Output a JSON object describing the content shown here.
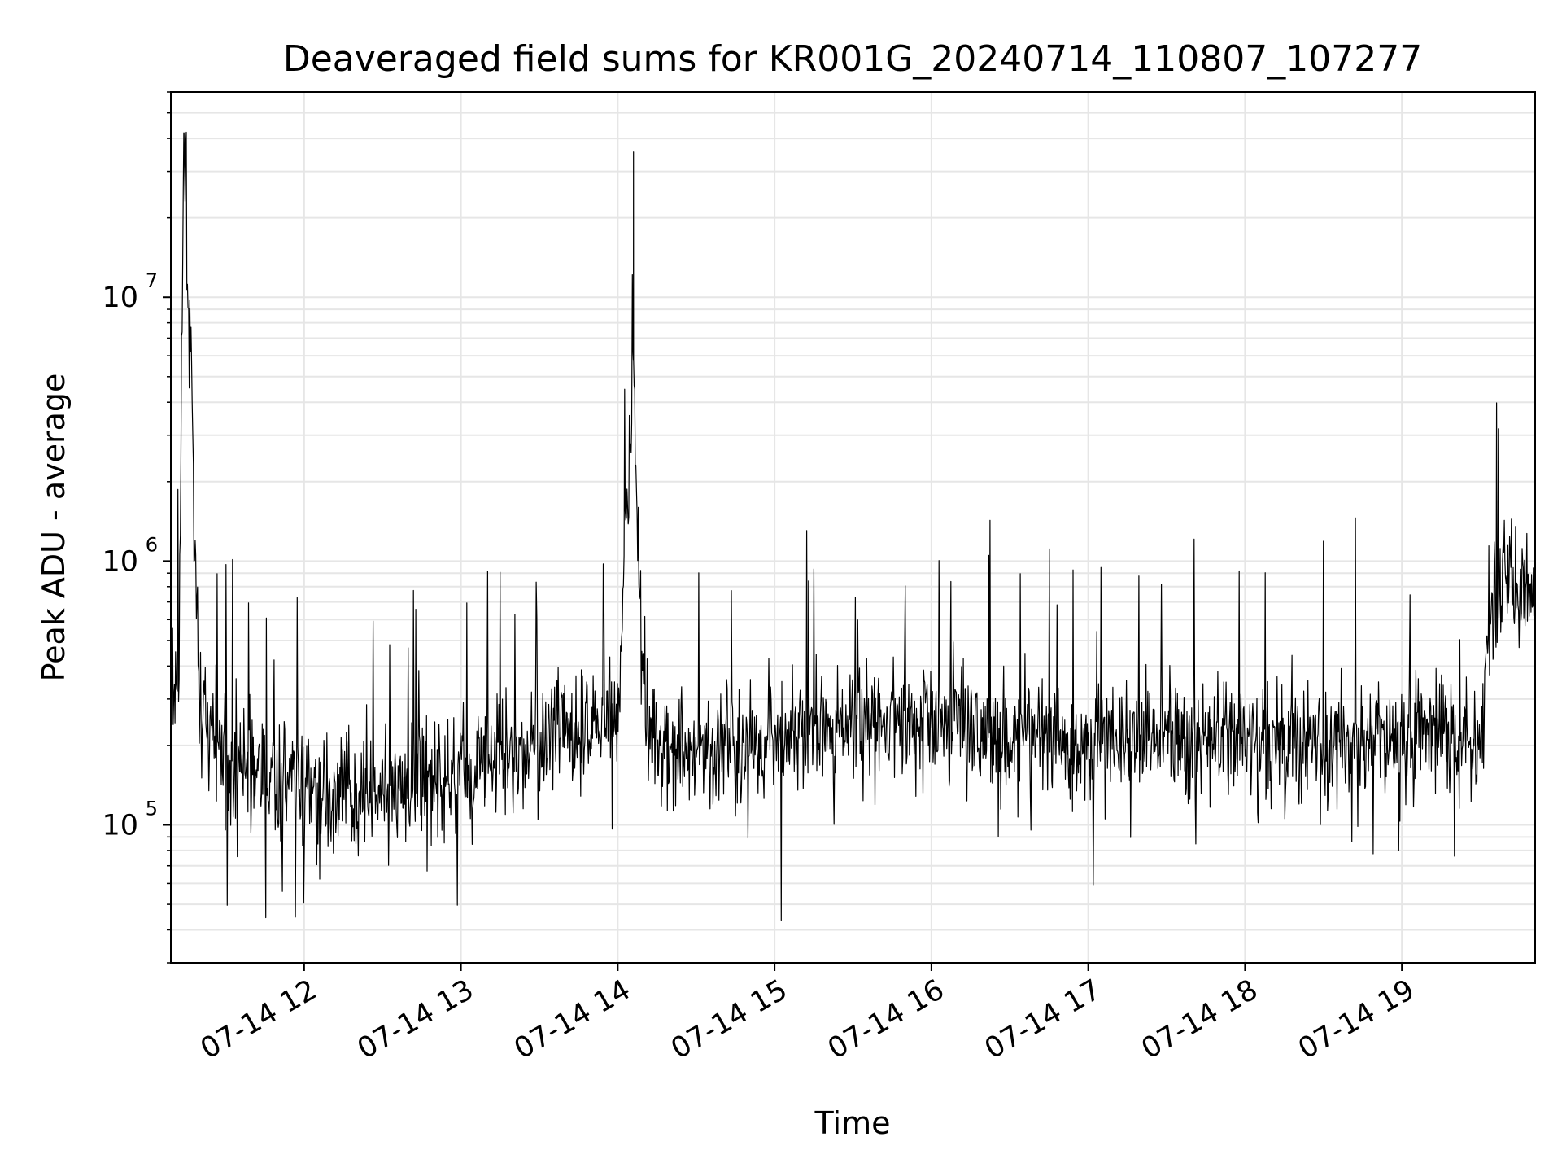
{
  "chart_data": {
    "type": "line",
    "title": "Deaveraged field sums for KR001G_20240714_110807_107277",
    "xlabel": "Time",
    "ylabel": "Peak ADU - average",
    "x_range": [
      "07-14 11:09",
      "07-14 19:51"
    ],
    "xticks": [
      {
        "time": "07-14 12:00",
        "label": "07-14 12"
      },
      {
        "time": "07-14 13:00",
        "label": "07-14 13"
      },
      {
        "time": "07-14 14:00",
        "label": "07-14 14"
      },
      {
        "time": "07-14 15:00",
        "label": "07-14 15"
      },
      {
        "time": "07-14 16:00",
        "label": "07-14 16"
      },
      {
        "time": "07-14 17:00",
        "label": "07-14 17"
      },
      {
        "time": "07-14 18:00",
        "label": "07-14 18"
      },
      {
        "time": "07-14 19:00",
        "label": "07-14 19"
      }
    ],
    "y_scale": "log",
    "ylim": [
      30000,
      60000000
    ],
    "yticks": [
      {
        "value": 100000,
        "base": "10",
        "exp": "5"
      },
      {
        "value": 1000000,
        "base": "10",
        "exp": "6"
      },
      {
        "value": 10000000,
        "base": "10",
        "exp": "7"
      }
    ],
    "grid": true,
    "line_color": "#000000",
    "grid_color": "#e6e6e6",
    "series": [
      {
        "x": [
          "07-14 11:09",
          "07-14 11:12",
          "07-14 11:14",
          "07-14 11:20",
          "07-14 11:30",
          "07-14 11:40",
          "07-14 11:50",
          "07-14 12:00",
          "07-14 12:10",
          "07-14 12:20",
          "07-14 12:30",
          "07-14 12:40",
          "07-14 12:50",
          "07-14 13:00",
          "07-14 13:10",
          "07-14 13:20",
          "07-14 13:30",
          "07-14 13:40",
          "07-14 13:50",
          "07-14 14:00",
          "07-14 14:06",
          "07-14 14:10",
          "07-14 14:20",
          "07-14 14:30",
          "07-14 14:40",
          "07-14 14:50",
          "07-14 15:00",
          "07-14 15:10",
          "07-14 15:20",
          "07-14 15:30",
          "07-14 15:40",
          "07-14 15:50",
          "07-14 16:00",
          "07-14 16:10",
          "07-14 16:20",
          "07-14 16:30",
          "07-14 16:40",
          "07-14 16:50",
          "07-14 17:00",
          "07-14 17:10",
          "07-14 17:20",
          "07-14 17:30",
          "07-14 17:40",
          "07-14 17:50",
          "07-14 18:00",
          "07-14 18:10",
          "07-14 18:20",
          "07-14 18:30",
          "07-14 18:40",
          "07-14 18:50",
          "07-14 19:00",
          "07-14 19:10",
          "07-14 19:20",
          "07-14 19:30",
          "07-14 19:35",
          "07-14 19:40",
          "07-14 19:45",
          "07-14 19:51"
        ],
        "y": [
          300000,
          320000,
          42000000,
          250000,
          190000,
          160000,
          140000,
          135000,
          130000,
          125000,
          135000,
          140000,
          145000,
          150000,
          175000,
          190000,
          205000,
          225000,
          240000,
          260000,
          5800000,
          240000,
          200000,
          190000,
          195000,
          205000,
          215000,
          225000,
          230000,
          235000,
          245000,
          240000,
          250000,
          255000,
          250000,
          230000,
          220000,
          210000,
          205000,
          210000,
          215000,
          220000,
          215000,
          210000,
          205000,
          205000,
          200000,
          200000,
          205000,
          215000,
          225000,
          230000,
          220000,
          210000,
          700000,
          900000,
          850000,
          700000
        ]
      }
    ]
  }
}
